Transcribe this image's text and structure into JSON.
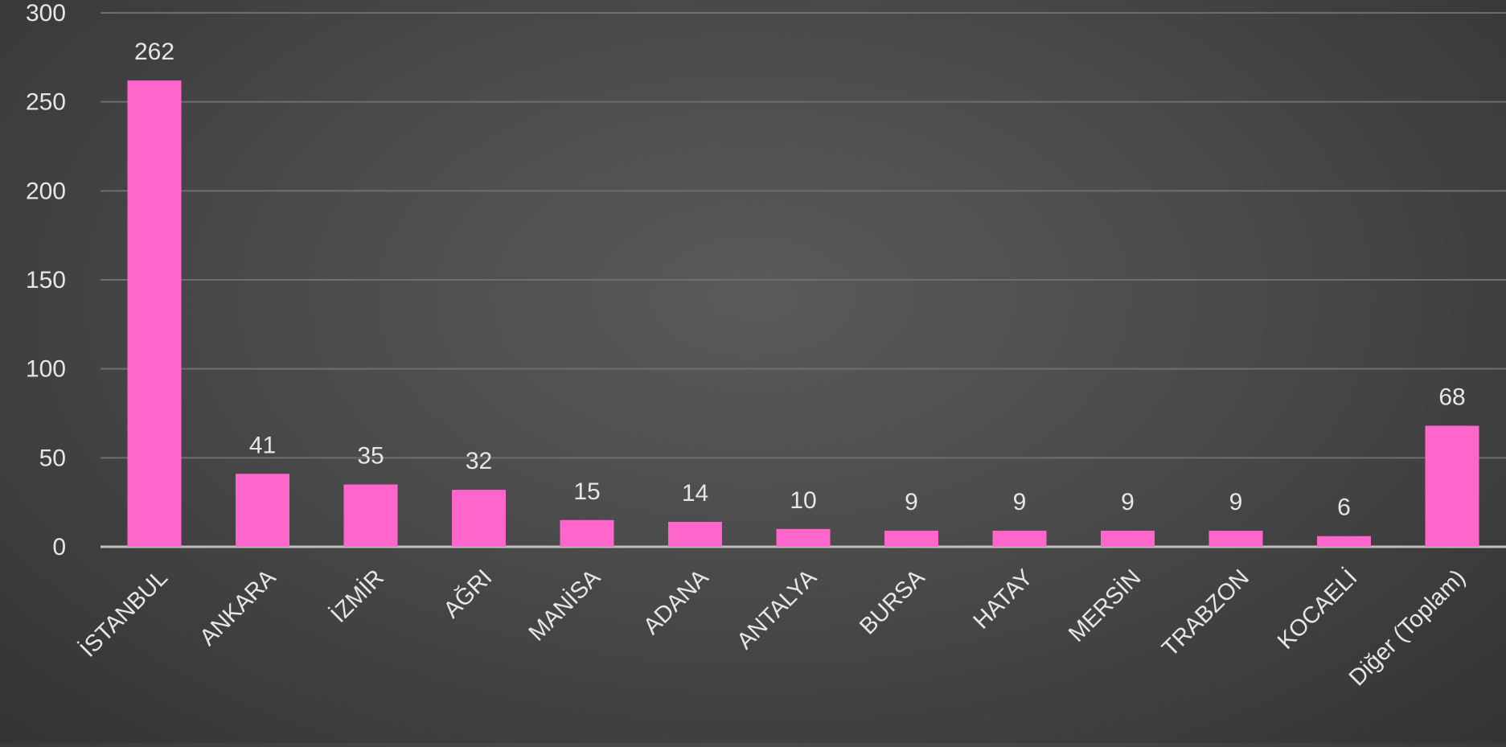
{
  "chart_data": {
    "type": "bar",
    "categories": [
      "İSTANBUL",
      "ANKARA",
      "İZMİR",
      "AĞRI",
      "MANİSA",
      "ADANA",
      "ANTALYA",
      "BURSA",
      "HATAY",
      "MERSİN",
      "TRABZON",
      "KOCAELİ",
      "Diğer (Toplam)"
    ],
    "values": [
      262,
      41,
      35,
      32,
      15,
      14,
      10,
      9,
      9,
      9,
      9,
      6,
      68
    ],
    "data_labels": [
      "262",
      "41",
      "35",
      "32",
      "15",
      "14",
      "10",
      "9",
      "9",
      "9",
      "9",
      "6",
      "68"
    ],
    "y_ticks": [
      0,
      50,
      100,
      150,
      200,
      250,
      300
    ],
    "y_tick_labels": [
      "0",
      "50",
      "100",
      "150",
      "200",
      "250",
      "300"
    ],
    "ylim": [
      0,
      300
    ],
    "grid": true,
    "legend": "none",
    "title": "",
    "xlabel": "",
    "ylabel": ""
  },
  "colors": {
    "bar": "#ff66cc",
    "text": "#e6e6e6",
    "gridline": "#6e6e6e",
    "axis": "#bfbfbf"
  }
}
